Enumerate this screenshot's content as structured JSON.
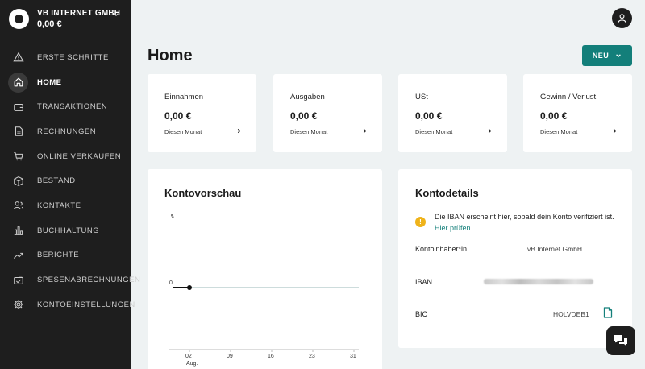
{
  "company": {
    "name": "VB INTERNET GMBH",
    "balance": "0,00 €"
  },
  "nav": [
    {
      "label": "ERSTE SCHRITTE",
      "icon": "warning-icon",
      "active": false
    },
    {
      "label": "HOME",
      "icon": "home-icon",
      "active": true
    },
    {
      "label": "TRANSAKTIONEN",
      "icon": "wallet-icon",
      "active": false
    },
    {
      "label": "RECHNUNGEN",
      "icon": "document-icon",
      "active": false
    },
    {
      "label": "ONLINE VERKAUFEN",
      "icon": "cart-icon",
      "active": false
    },
    {
      "label": "BESTAND",
      "icon": "box-icon",
      "active": false
    },
    {
      "label": "KONTAKTE",
      "icon": "contacts-icon",
      "active": false
    },
    {
      "label": "BUCHHALTUNG",
      "icon": "bar-chart-icon",
      "active": false
    },
    {
      "label": "BERICHTE",
      "icon": "trend-icon",
      "active": false
    },
    {
      "label": "SPESENABRECHNUNGEN",
      "icon": "receipt-icon",
      "active": false
    },
    {
      "label": "KONTOEINSTELLUNGEN",
      "icon": "gear-icon",
      "active": false
    }
  ],
  "header": {
    "title": "Home",
    "new_button": "NEU"
  },
  "stats": [
    {
      "title": "Einnahmen",
      "value": "0,00 €",
      "sub": "Diesen Monat"
    },
    {
      "title": "Ausgaben",
      "value": "0,00 €",
      "sub": "Diesen Monat"
    },
    {
      "title": "USt",
      "value": "0,00 €",
      "sub": "Diesen Monat"
    },
    {
      "title": "Gewinn / Verlust",
      "value": "0,00 €",
      "sub": "Diesen Monat"
    }
  ],
  "kontovorschau": {
    "title": "Kontovorschau"
  },
  "chart_data": {
    "type": "line",
    "title": "",
    "ylabel": "€",
    "y_ticks": [
      "0"
    ],
    "x_ticks": [
      "02",
      "09",
      "16",
      "23",
      "31"
    ],
    "x_month": "Aug.",
    "series": [
      {
        "values": [
          0,
          0,
          0,
          0,
          0
        ]
      }
    ]
  },
  "kontodetails": {
    "title": "Kontodetails",
    "notice": "Die IBAN erscheint hier, sobald dein Konto verifiziert ist.",
    "notice_link": "Hier prüfen",
    "holder_label": "Kontoinhaber*in",
    "holder_value": "vB Internet GmbH",
    "iban_label": "IBAN",
    "bic_label": "BIC",
    "bic_value": "HOLVDEB1"
  },
  "colors": {
    "accent": "#137f7a",
    "sidebar": "#1e1e1e",
    "warning": "#efb31a"
  }
}
